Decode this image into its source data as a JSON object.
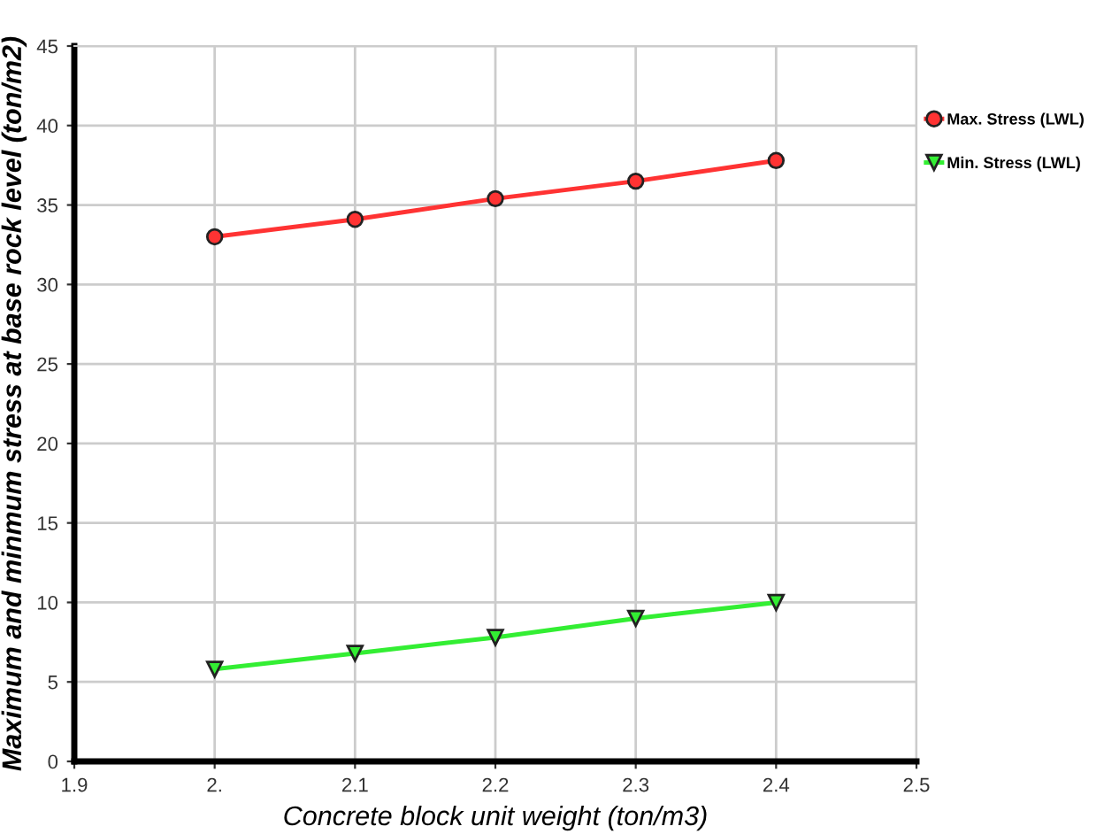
{
  "chart_data": {
    "type": "line",
    "xlabel": "Concrete block unit weight (ton/m3)",
    "ylabel": "Maximum and minmum stress at base rock level (ton/m2)",
    "x": [
      2.0,
      2.1,
      2.2,
      2.3,
      2.4
    ],
    "series": [
      {
        "name": "Max. Stress (LWL)",
        "color": "#ff3333",
        "marker": "circle",
        "values": [
          33.0,
          34.1,
          35.4,
          36.5,
          37.8
        ]
      },
      {
        "name": "Min. Stress (LWL)",
        "color": "#33ee33",
        "marker": "triangle",
        "values": [
          5.8,
          6.8,
          7.8,
          9.0,
          10.0
        ]
      }
    ],
    "xlim": [
      1.9,
      2.5
    ],
    "xticks": [
      1.9,
      {
        "value": 2.0,
        "label": "2."
      },
      2.1,
      2.2,
      2.3,
      2.4,
      2.5
    ],
    "ylim": [
      0,
      45
    ],
    "yticks": [
      0,
      5,
      10,
      15,
      20,
      25,
      30,
      35,
      40,
      45
    ],
    "grid": true,
    "legend": "top right",
    "line_style": "solid"
  }
}
